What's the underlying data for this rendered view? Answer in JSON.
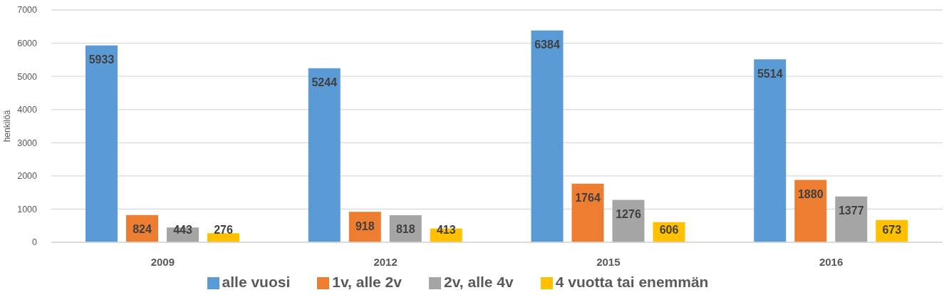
{
  "chart_data": {
    "type": "bar",
    "ylabel": "henkilöä",
    "categories": [
      "2009",
      "2012",
      "2015",
      "2016"
    ],
    "series": [
      {
        "name": "alle vuosi",
        "color": "#5b9bd5",
        "values": [
          5933,
          5244,
          6384,
          5514
        ]
      },
      {
        "name": "1v, alle 2v",
        "color": "#ed7d31",
        "values": [
          824,
          918,
          1764,
          1880
        ]
      },
      {
        "name": "2v, alle 4v",
        "color": "#a5a5a5",
        "values": [
          443,
          818,
          1276,
          1377
        ]
      },
      {
        "name": "4 vuotta tai enemmän",
        "color": "#ffc000",
        "values": [
          276,
          413,
          606,
          673
        ]
      }
    ],
    "ylim": [
      0,
      7000
    ],
    "yticks": [
      0,
      1000,
      2000,
      3000,
      4000,
      5000,
      6000,
      7000
    ],
    "grid": "y",
    "legend": "bottom",
    "data_labels": true
  }
}
